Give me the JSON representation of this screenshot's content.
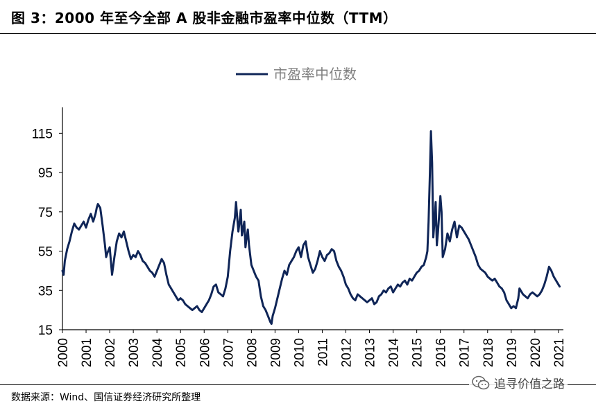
{
  "figure_title": "图 3：2000 年至今全部 A 股非金融市盈率中位数（TTM）",
  "source_note": "数据来源：Wind、国信证券经济研究所整理",
  "watermark_text": "追寻价值之路",
  "watermark_icon": "wechat-icon",
  "colors": {
    "series": "#0f2557",
    "axis": "#000000"
  },
  "chart_data": {
    "type": "line",
    "title": "",
    "xlabel": "",
    "ylabel": "",
    "ylim": [
      15,
      125
    ],
    "yticks": [
      15,
      35,
      55,
      75,
      95,
      115
    ],
    "xlim": [
      2000.0,
      2021.15
    ],
    "xticks": [
      "2000",
      "2001",
      "2002",
      "2003",
      "2004",
      "2005",
      "2006",
      "2007",
      "2008",
      "2009",
      "2010",
      "2011",
      "2012",
      "2013",
      "2014",
      "2015",
      "2016",
      "2017",
      "2018",
      "2019",
      "2020",
      "2021"
    ],
    "legend": {
      "position": "top-center",
      "entries": [
        "市盈率中位数"
      ]
    },
    "grid": false,
    "series": [
      {
        "name": "市盈率中位数",
        "x": [
          2000.0,
          2000.05,
          2000.1,
          2000.2,
          2000.3,
          2000.4,
          2000.5,
          2000.6,
          2000.7,
          2000.8,
          2000.9,
          2001.0,
          2001.1,
          2001.2,
          2001.3,
          2001.35,
          2001.4,
          2001.45,
          2001.5,
          2001.6,
          2001.7,
          2001.8,
          2001.85,
          2001.9,
          2002.0,
          2002.05,
          2002.1,
          2002.2,
          2002.3,
          2002.4,
          2002.5,
          2002.6,
          2002.7,
          2002.8,
          2002.9,
          2003.0,
          2003.1,
          2003.2,
          2003.3,
          2003.4,
          2003.5,
          2003.6,
          2003.7,
          2003.8,
          2003.9,
          2004.0,
          2004.1,
          2004.2,
          2004.3,
          2004.4,
          2004.5,
          2004.6,
          2004.7,
          2004.8,
          2004.9,
          2005.0,
          2005.1,
          2005.2,
          2005.3,
          2005.4,
          2005.5,
          2005.6,
          2005.7,
          2005.8,
          2005.9,
          2006.0,
          2006.1,
          2006.2,
          2006.3,
          2006.4,
          2006.5,
          2006.6,
          2006.7,
          2006.8,
          2006.9,
          2007.0,
          2007.1,
          2007.2,
          2007.3,
          2007.35,
          2007.4,
          2007.45,
          2007.5,
          2007.55,
          2007.6,
          2007.7,
          2007.75,
          2007.8,
          2007.85,
          2007.9,
          2008.0,
          2008.1,
          2008.2,
          2008.3,
          2008.4,
          2008.5,
          2008.6,
          2008.7,
          2008.8,
          2008.85,
          2008.9,
          2009.0,
          2009.1,
          2009.2,
          2009.3,
          2009.4,
          2009.5,
          2009.6,
          2009.7,
          2009.8,
          2009.9,
          2010.0,
          2010.1,
          2010.2,
          2010.3,
          2010.4,
          2010.5,
          2010.6,
          2010.7,
          2010.8,
          2010.9,
          2011.0,
          2011.1,
          2011.2,
          2011.3,
          2011.4,
          2011.5,
          2011.6,
          2011.7,
          2011.8,
          2011.9,
          2012.0,
          2012.1,
          2012.2,
          2012.3,
          2012.4,
          2012.5,
          2012.6,
          2012.7,
          2012.8,
          2012.9,
          2013.0,
          2013.1,
          2013.2,
          2013.3,
          2013.4,
          2013.5,
          2013.6,
          2013.7,
          2013.8,
          2013.9,
          2014.0,
          2014.1,
          2014.2,
          2014.3,
          2014.4,
          2014.5,
          2014.6,
          2014.7,
          2014.8,
          2014.9,
          2015.0,
          2015.1,
          2015.2,
          2015.3,
          2015.35,
          2015.4,
          2015.45,
          2015.5,
          2015.55,
          2015.6,
          2015.65,
          2015.7,
          2015.75,
          2015.8,
          2015.85,
          2015.9,
          2016.0,
          2016.05,
          2016.1,
          2016.2,
          2016.3,
          2016.4,
          2016.5,
          2016.6,
          2016.7,
          2016.8,
          2016.9,
          2017.0,
          2017.1,
          2017.2,
          2017.3,
          2017.4,
          2017.5,
          2017.6,
          2017.7,
          2017.8,
          2017.9,
          2018.0,
          2018.1,
          2018.2,
          2018.3,
          2018.4,
          2018.5,
          2018.6,
          2018.7,
          2018.8,
          2018.9,
          2019.0,
          2019.1,
          2019.2,
          2019.3,
          2019.35,
          2019.4,
          2019.5,
          2019.6,
          2019.7,
          2019.8,
          2019.9,
          2020.0,
          2020.1,
          2020.2,
          2020.3,
          2020.4,
          2020.5,
          2020.6,
          2020.7,
          2020.8,
          2020.9,
          2021.0,
          2021.05
        ],
        "values": [
          45,
          43,
          50,
          56,
          60,
          65,
          69,
          67,
          66,
          68,
          70,
          67,
          71,
          74,
          70,
          72,
          74,
          77,
          79,
          77,
          68,
          58,
          52,
          54,
          57,
          50,
          43,
          52,
          60,
          64,
          62,
          65,
          60,
          55,
          51,
          53,
          52,
          55,
          53,
          50,
          49,
          47,
          45,
          44,
          42,
          45,
          48,
          51,
          49,
          43,
          38,
          36,
          34,
          32,
          30,
          31,
          30,
          28,
          27,
          26,
          25,
          26,
          27,
          25,
          24,
          26,
          28,
          30,
          33,
          37,
          38,
          34,
          33,
          32,
          36,
          42,
          55,
          65,
          72,
          80,
          72,
          65,
          70,
          76,
          63,
          70,
          57,
          62,
          66,
          58,
          48,
          45,
          42,
          40,
          32,
          27,
          25,
          22,
          19,
          18,
          22,
          26,
          31,
          36,
          41,
          45,
          43,
          48,
          50,
          52,
          55,
          57,
          52,
          58,
          60,
          52,
          48,
          44,
          46,
          50,
          55,
          52,
          50,
          53,
          54,
          56,
          55,
          50,
          47,
          45,
          42,
          38,
          36,
          33,
          31,
          30,
          33,
          32,
          31,
          30,
          29,
          30,
          31,
          28,
          29,
          32,
          33,
          35,
          34,
          36,
          37,
          34,
          36,
          38,
          37,
          39,
          40,
          38,
          41,
          40,
          42,
          44,
          45,
          47,
          48,
          50,
          52,
          55,
          70,
          92,
          116,
          100,
          62,
          70,
          80,
          58,
          65,
          83,
          75,
          52,
          56,
          64,
          60,
          66,
          70,
          62,
          68,
          67,
          65,
          63,
          61,
          58,
          55,
          52,
          48,
          46,
          45,
          44,
          42,
          41,
          40,
          41,
          39,
          37,
          36,
          34,
          30,
          28,
          26,
          27,
          26,
          31,
          36,
          35,
          33,
          32,
          31,
          33,
          34,
          33,
          32,
          33,
          35,
          38,
          42,
          47,
          45,
          42,
          40,
          38,
          37
        ]
      }
    ]
  }
}
